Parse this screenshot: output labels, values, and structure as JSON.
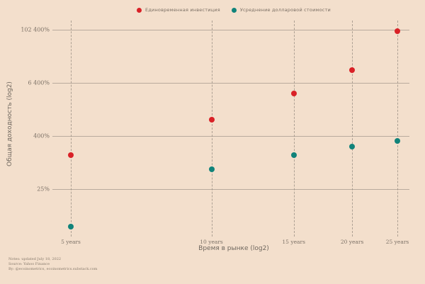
{
  "legend": [
    {
      "label": "Единовременная инвестиция",
      "color": "#d92127"
    },
    {
      "label": "Усреднение долларовой стоимости",
      "color": "#10837a"
    }
  ],
  "x_axis": {
    "title": "Время в рынке (log2)",
    "tick_labels": [
      "5 years",
      "10 years",
      "15 years",
      "20 years",
      "25 years"
    ]
  },
  "y_axis": {
    "title": "Общая доходность (log2)",
    "tick_labels": [
      "102 400%",
      "6 400%",
      "400%",
      "25%"
    ]
  },
  "footer": {
    "line1": "Notes: updated July 18, 2022",
    "line2": "Source: Yahoo Finance",
    "line3": "By: @ecoinometrics, ecoinometrics.substack.com"
  },
  "colors": {
    "background": "#f3dfcc",
    "lump_sum_red": "#d92127",
    "dca_teal": "#10837a",
    "gridline": "#a59a8d",
    "text": "#7d7267"
  },
  "chart_data": {
    "type": "scatter",
    "title": "",
    "xlabel": "Время в рынке (log2)",
    "ylabel": "Общая доходность (log2)",
    "x_scale": "log2",
    "y_scale": "log2",
    "grid": "horizontal solid + vertical dashed per category",
    "legend_position": "top center",
    "x_years": [
      5,
      10,
      15,
      20,
      25
    ],
    "y_ticks_pct": [
      102400,
      6400,
      400,
      25
    ],
    "series": [
      {
        "name": "Единовременная инвестиция",
        "color": "#d92127",
        "values_pct": [
          150,
          930,
          3700,
          12500,
          95000
        ]
      },
      {
        "name": "Усреднение долларовой стоимости",
        "color": "#10837a",
        "values_pct": [
          3.5,
          70,
          150,
          230,
          310
        ]
      }
    ]
  }
}
